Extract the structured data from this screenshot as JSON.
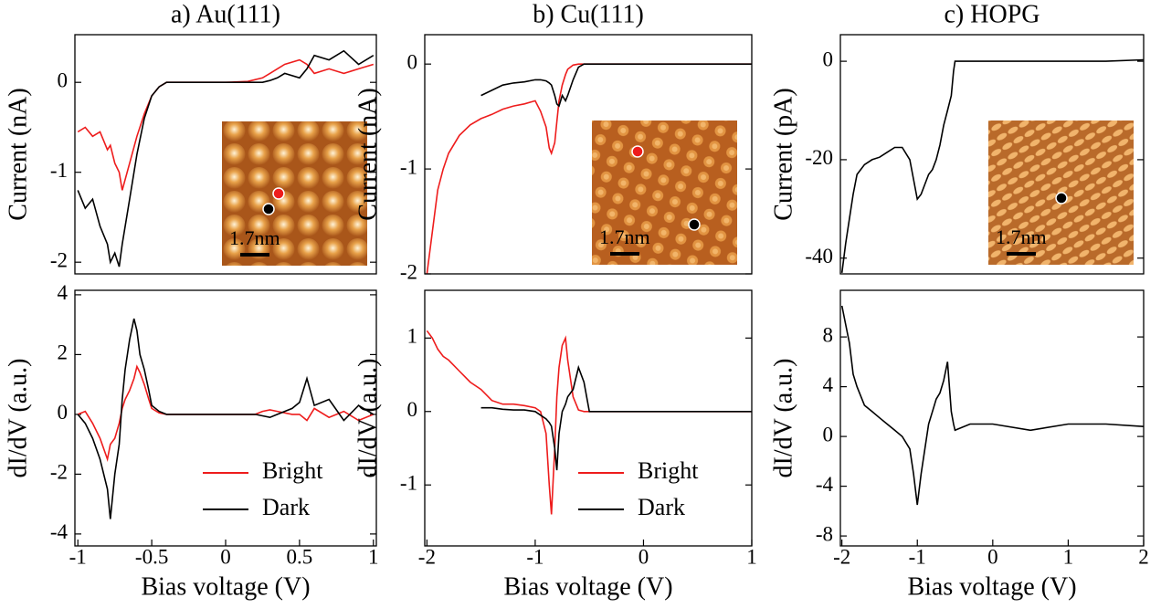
{
  "chart_data": [
    {
      "type": "line",
      "title": "a) Au(111)",
      "ylabel": "Current (nA)",
      "x": [
        -1,
        -0.95,
        -0.9,
        -0.85,
        -0.8,
        -0.78,
        -0.75,
        -0.72,
        -0.7,
        -0.65,
        -0.6,
        -0.55,
        -0.5,
        -0.45,
        -0.4,
        -0.3,
        -0.2,
        0,
        0.15,
        0.25,
        0.3,
        0.35,
        0.4,
        0.5,
        0.55,
        0.6,
        0.7,
        0.8,
        0.9,
        1
      ],
      "series": [
        {
          "color": "#ee1c1c",
          "values": [
            -0.55,
            -0.5,
            -0.6,
            -0.55,
            -0.75,
            -0.7,
            -0.9,
            -1.0,
            -1.2,
            -0.9,
            -0.6,
            -0.35,
            -0.15,
            -0.05,
            0,
            0,
            0,
            0,
            0.01,
            0.05,
            0.1,
            0.15,
            0.2,
            0.25,
            0.2,
            0.1,
            0.15,
            0.1,
            0.15,
            0.2
          ]
        },
        {
          "color": "#000000",
          "values": [
            -1.2,
            -1.4,
            -1.3,
            -1.6,
            -1.8,
            -2.0,
            -1.9,
            -2.05,
            -1.8,
            -1.3,
            -0.8,
            -0.4,
            -0.15,
            -0.05,
            0,
            0,
            0,
            0,
            0,
            0,
            0.02,
            0.05,
            0.1,
            0.05,
            0.15,
            0.3,
            0.25,
            0.35,
            0.2,
            0.3
          ]
        }
      ],
      "xlim": [
        -1.02,
        1.02
      ],
      "ylim": [
        -2.13,
        0.53
      ],
      "yticks": [
        0,
        -1,
        -2
      ],
      "inset": {
        "scale_label": "1.7nm"
      }
    },
    {
      "type": "line",
      "ylabel": "dI/dV (a.u.)",
      "xlabel": "Bias voltage (V)",
      "x": [
        -1,
        -0.95,
        -0.9,
        -0.85,
        -0.8,
        -0.78,
        -0.75,
        -0.72,
        -0.7,
        -0.68,
        -0.65,
        -0.62,
        -0.6,
        -0.58,
        -0.55,
        -0.52,
        -0.5,
        -0.45,
        -0.4,
        -0.3,
        0,
        0.2,
        0.25,
        0.3,
        0.35,
        0.45,
        0.5,
        0.55,
        0.6,
        0.7,
        0.8,
        0.9,
        1
      ],
      "series": [
        {
          "name": "Bright",
          "color": "#ee1c1c",
          "values": [
            0,
            0.1,
            -0.3,
            -0.8,
            -1.5,
            -1.0,
            -0.8,
            -0.3,
            0.2,
            0.5,
            0.8,
            1.2,
            1.6,
            1.4,
            1.0,
            0.5,
            0.2,
            0.05,
            0,
            0,
            0,
            0,
            0.1,
            0.15,
            0.1,
            0,
            0,
            -0.2,
            0.2,
            -0.1,
            0.1,
            -0.2,
            0
          ]
        },
        {
          "name": "Dark",
          "color": "#000000",
          "values": [
            0,
            -0.3,
            -0.8,
            -1.5,
            -2.5,
            -3.5,
            -2.0,
            -1.0,
            0.5,
            1.5,
            2.5,
            3.2,
            2.8,
            2.0,
            1.5,
            0.8,
            0.3,
            0.1,
            0,
            0,
            0,
            0,
            -0.05,
            -0.1,
            0,
            0.2,
            0.4,
            1.2,
            0.3,
            0.5,
            -0.2,
            0.3,
            0
          ]
        }
      ],
      "xlim": [
        -1.02,
        1.02
      ],
      "ylim": [
        -4.4,
        4.15
      ],
      "xticks": [
        -1,
        -0.5,
        0,
        0.5,
        1
      ],
      "yticks": [
        4,
        2,
        0,
        -2,
        -4
      ],
      "legend": "lower right"
    },
    {
      "type": "line",
      "title": "b) Cu(111)",
      "ylabel": "Current (nA)",
      "x": [
        -2,
        -1.95,
        -1.9,
        -1.85,
        -1.8,
        -1.7,
        -1.6,
        -1.5,
        -1.4,
        -1.3,
        -1.2,
        -1.1,
        -1.0,
        -0.95,
        -0.9,
        -0.87,
        -0.85,
        -0.82,
        -0.8,
        -0.78,
        -0.75,
        -0.72,
        -0.7,
        -0.65,
        -0.6,
        -0.55,
        -0.5,
        -0.3,
        0,
        0.5,
        1
      ],
      "series": [
        {
          "color": "#ee1c1c",
          "values": [
            -2.0,
            -1.6,
            -1.2,
            -1.0,
            -0.85,
            -0.68,
            -0.58,
            -0.52,
            -0.48,
            -0.43,
            -0.4,
            -0.38,
            -0.35,
            -0.45,
            -0.6,
            -0.8,
            -0.85,
            -0.75,
            -0.55,
            -0.35,
            -0.2,
            -0.1,
            -0.05,
            -0.01,
            0,
            0,
            0,
            0,
            0,
            0,
            0
          ]
        },
        {
          "color": "#000000",
          "values": [
            null,
            null,
            null,
            null,
            null,
            null,
            null,
            -0.3,
            -0.25,
            -0.2,
            -0.18,
            -0.17,
            -0.15,
            -0.15,
            -0.16,
            -0.18,
            -0.2,
            -0.3,
            -0.38,
            -0.4,
            -0.3,
            -0.35,
            -0.3,
            -0.15,
            -0.03,
            0,
            0,
            0,
            0,
            0,
            0
          ]
        }
      ],
      "xlim": [
        -2.02,
        1.0
      ],
      "ylim": [
        -2.0,
        0.28
      ],
      "yticks": [
        0,
        -1,
        -2
      ],
      "inset": {
        "scale_label": "1.7nm"
      }
    },
    {
      "type": "line",
      "ylabel": "dI/dV (a.u.)",
      "xlabel": "Bias voltage (V)",
      "x": [
        -2,
        -1.95,
        -1.9,
        -1.85,
        -1.8,
        -1.7,
        -1.6,
        -1.5,
        -1.4,
        -1.3,
        -1.2,
        -1.1,
        -1.0,
        -0.95,
        -0.9,
        -0.87,
        -0.85,
        -0.82,
        -0.8,
        -0.78,
        -0.75,
        -0.72,
        -0.7,
        -0.65,
        -0.6,
        -0.55,
        -0.5,
        -0.3,
        0,
        0.5,
        1
      ],
      "series": [
        {
          "name": "Bright",
          "color": "#ee1c1c",
          "values": [
            1.1,
            1.0,
            0.85,
            0.75,
            0.7,
            0.55,
            0.4,
            0.3,
            0.15,
            0.1,
            0.1,
            0.08,
            0.05,
            0,
            -0.3,
            -1.0,
            -1.4,
            -0.5,
            0.2,
            0.6,
            0.9,
            1.0,
            0.7,
            0.2,
            0.02,
            0,
            0,
            0,
            0,
            0,
            0
          ]
        },
        {
          "name": "Dark",
          "color": "#000000",
          "values": [
            null,
            null,
            null,
            null,
            null,
            null,
            null,
            0.05,
            0.05,
            0.03,
            0.02,
            0.02,
            0,
            -0.05,
            -0.1,
            -0.15,
            -0.2,
            -0.5,
            -0.8,
            -0.3,
            0,
            0.1,
            0.2,
            0.3,
            0.6,
            0.4,
            0,
            0,
            0,
            0,
            0
          ]
        }
      ],
      "xlim": [
        -2.02,
        1.0
      ],
      "ylim": [
        -1.83,
        1.65
      ],
      "xticks": [
        -2,
        -1,
        0,
        1
      ],
      "yticks": [
        1,
        0,
        -1
      ],
      "legend": "lower right"
    },
    {
      "type": "line",
      "title": "c) HOPG",
      "ylabel": "Current (pA)",
      "x": [
        -2,
        -1.95,
        -1.9,
        -1.85,
        -1.8,
        -1.7,
        -1.6,
        -1.5,
        -1.4,
        -1.3,
        -1.2,
        -1.1,
        -1.05,
        -1.0,
        -0.95,
        -0.9,
        -0.85,
        -0.8,
        -0.75,
        -0.7,
        -0.65,
        -0.6,
        -0.55,
        -0.52,
        -0.5,
        -0.3,
        0,
        0.5,
        1,
        1.5,
        2
      ],
      "series": [
        {
          "color": "#000000",
          "values": [
            -43,
            -37,
            -32,
            -27,
            -23,
            -21,
            -20,
            -19.5,
            -18.5,
            -17.5,
            -17.5,
            -20,
            -24,
            -28,
            -27,
            -25,
            -23,
            -22,
            -20,
            -17,
            -13,
            -10,
            -7,
            -2,
            0,
            0,
            0,
            0,
            0,
            0,
            0.3
          ]
        }
      ],
      "xlim": [
        -2.02,
        2.0
      ],
      "ylim": [
        -43.2,
        5.4
      ],
      "yticks": [
        0,
        -20,
        -40
      ],
      "inset": {
        "scale_label": "1.7nm"
      }
    },
    {
      "type": "line",
      "ylabel": "dI/dV (a.u.)",
      "xlabel": "Bias voltage (V)",
      "x": [
        -2,
        -1.95,
        -1.9,
        -1.85,
        -1.8,
        -1.7,
        -1.6,
        -1.5,
        -1.4,
        -1.3,
        -1.2,
        -1.1,
        -1.05,
        -1.0,
        -0.95,
        -0.9,
        -0.85,
        -0.8,
        -0.75,
        -0.7,
        -0.65,
        -0.6,
        -0.55,
        -0.52,
        -0.5,
        -0.3,
        0,
        0.5,
        1,
        1.5,
        2
      ],
      "series": [
        {
          "color": "#000000",
          "values": [
            10.5,
            9,
            7.5,
            5,
            4,
            2.5,
            2,
            1.5,
            1,
            0.5,
            0,
            -1,
            -3,
            -5.5,
            -3,
            -1,
            1,
            2,
            3,
            3.5,
            4.5,
            6,
            2,
            1,
            0.5,
            1,
            1,
            0.5,
            1,
            1,
            0.8
          ]
        }
      ],
      "xlim": [
        -2.02,
        2.0
      ],
      "ylim": [
        -8.8,
        11.75
      ],
      "xticks": [
        -2,
        -1,
        0,
        1,
        2
      ],
      "yticks": [
        8,
        4,
        0,
        -4,
        -8
      ]
    }
  ]
}
